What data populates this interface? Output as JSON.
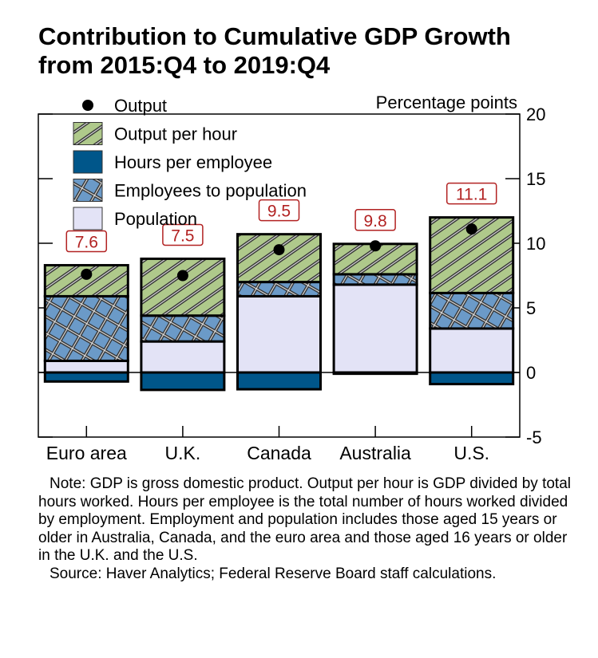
{
  "title_lines": [
    "Contribution to Cumulative GDP Growth",
    "from 2015:Q4 to 2019:Q4"
  ],
  "chart_data": {
    "type": "bar",
    "stacked": true,
    "ylabel": "Percentage points",
    "ylim": [
      -5,
      20
    ],
    "yticks": [
      -5,
      0,
      5,
      10,
      15,
      20
    ],
    "categories": [
      "Euro area",
      "U.K.",
      "Canada",
      "Australia",
      "U.S."
    ],
    "series": [
      {
        "name": "Population",
        "values": [
          0.9,
          2.4,
          5.9,
          6.8,
          3.4
        ],
        "color": "#e3e3f6",
        "pattern": "none"
      },
      {
        "name": "Employees to population",
        "values": [
          5.0,
          2.0,
          1.1,
          0.8,
          2.75
        ],
        "color": "#6b9ac8",
        "pattern": "crosshatch"
      },
      {
        "name": "Output per hour",
        "values": [
          2.4,
          4.4,
          3.7,
          2.35,
          5.85
        ],
        "color": "#afc98b",
        "pattern": "diagonal"
      },
      {
        "name": "Hours per employee",
        "values": [
          -0.7,
          -1.35,
          -1.3,
          -0.1,
          -0.9
        ],
        "color": "#00568a",
        "pattern": "none"
      }
    ],
    "points": {
      "name": "Output",
      "values": [
        7.6,
        7.5,
        9.5,
        9.8,
        11.1
      ],
      "labels": [
        "7.6",
        "7.5",
        "9.5",
        "9.8",
        "11.1"
      ],
      "label_color": "#b22222"
    },
    "legend": [
      "Output",
      "Output per hour",
      "Hours per employee",
      "Employees to population",
      "Population"
    ],
    "legend_placement": "top-left",
    "grid": false
  },
  "notes": [
    "Note: GDP is gross domestic product. Output per hour is GDP divided by total hours worked. Hours per employee is the total number of hours worked divided by employment. Employment and population includes those aged 15 years or older in Australia, Canada, and the euro area and those aged 16 years or older in the U.K. and the U.S.",
    "Source: Haver Analytics; Federal Reserve Board staff calculations."
  ]
}
